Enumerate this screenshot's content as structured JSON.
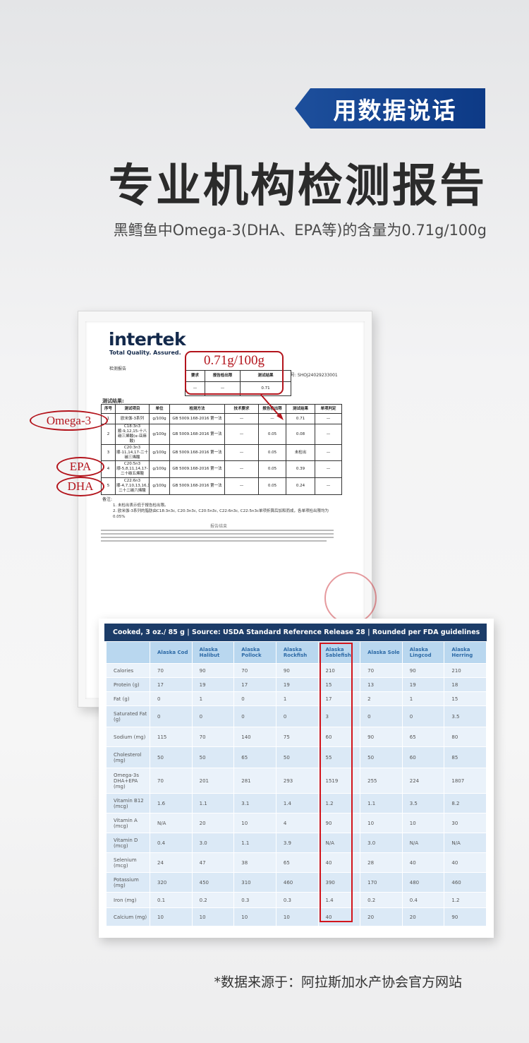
{
  "header": {
    "badge": "用数据说话",
    "title": "专业机构检测报告",
    "subtitle": "黑鳕鱼中Omega-3(DHA、EPA等)的含量为0.71g/100g"
  },
  "report": {
    "logo": "intertek",
    "tagline": "Total Quality. Assured.",
    "label": "检测报告",
    "report_no": "号: SHOJ24029233001",
    "summary": {
      "headers": [
        "要求",
        "报告检出限",
        "测试结果"
      ],
      "row": [
        "—",
        "—",
        "0.71"
      ]
    },
    "results_title": "测试结果:",
    "table": {
      "headers": [
        "序号",
        "测试项目",
        "单位",
        "检测方法",
        "技术要求",
        "报告检出限",
        "测试结果",
        "单项判定"
      ],
      "rows": [
        [
          "1",
          "欧米伽-3系列",
          "g/100g",
          "GB 5009.168-2016 第一法",
          "—",
          "—",
          "0.71",
          "—"
        ],
        [
          "2",
          "C18:3n3 顺-9,12,15-十八碳三烯酸(α-亚麻酸)",
          "g/100g",
          "GB 5009.168-2016 第一法",
          "—",
          "0.05",
          "0.08",
          "—"
        ],
        [
          "3",
          "C20:3n3 顺-11,14,17-二十碳三烯酸",
          "g/100g",
          "GB 5009.168-2016 第一法",
          "—",
          "0.05",
          "未检出",
          "—"
        ],
        [
          "4",
          "C20:5n3 顺-5,8,11,14,17-二十碳五烯酸",
          "g/100g",
          "GB 5009.168-2016 第一法",
          "—",
          "0.05",
          "0.39",
          "—"
        ],
        [
          "5",
          "C22:6n3 顺-4,7,10,13,16,19-二十二碳六烯酸",
          "g/100g",
          "GB 5009.168-2016 第一法",
          "—",
          "0.05",
          "0.24",
          "—"
        ]
      ]
    },
    "notes_title": "备注:",
    "notes": [
      "1. 未检出表示低于报告检出限。",
      "2. 欧米伽-3系列的脂肪由C18:3n3c, C20:3n3c, C20:5n3c, C22:6n3c, C22:5n3c单项折算后加和而成，各单项检出限均为0.05%"
    ],
    "end": "报告结束"
  },
  "annotations": {
    "callout": "0.71g/100g",
    "omega3": "Omega-3",
    "epa": "EPA",
    "dha": "DHA"
  },
  "nutrition": {
    "caption": "Cooked, 3 oz./ 85 g | Source: USDA Standard Reference Release 28 | Rounded per FDA guidelines",
    "columns": [
      "Alaska Cod",
      "Alaska Halibut",
      "Alaska Pollock",
      "Alaska Rockfish",
      "Alaska Sablefish",
      "Alaska Sole",
      "Alaska Lingcod",
      "Alaska Herring"
    ],
    "rows": [
      {
        "label": "Calories",
        "values": [
          "70",
          "90",
          "70",
          "90",
          "210",
          "70",
          "90",
          "210"
        ]
      },
      {
        "label": "Protein (g)",
        "values": [
          "17",
          "19",
          "17",
          "19",
          "15",
          "13",
          "19",
          "18"
        ]
      },
      {
        "label": "Fat (g)",
        "values": [
          "0",
          "1",
          "0",
          "1",
          "17",
          "2",
          "1",
          "15"
        ]
      },
      {
        "label": "Saturated Fat (g)",
        "values": [
          "0",
          "0",
          "0",
          "0",
          "3",
          "0",
          "0",
          "3.5"
        ]
      },
      {
        "label": "Sodium (mg)",
        "values": [
          "115",
          "70",
          "140",
          "75",
          "60",
          "90",
          "65",
          "80"
        ]
      },
      {
        "label": "Cholesterol (mg)",
        "values": [
          "50",
          "50",
          "65",
          "50",
          "55",
          "50",
          "60",
          "85"
        ]
      },
      {
        "label": "Omega-3s DHA+EPA (mg)",
        "values": [
          "70",
          "201",
          "281",
          "293",
          "1519",
          "255",
          "224",
          "1807"
        ]
      },
      {
        "label": "Vitamin B12 (mcg)",
        "values": [
          "1.6",
          "1.1",
          "3.1",
          "1.4",
          "1.2",
          "1.1",
          "3.5",
          "8.2"
        ]
      },
      {
        "label": "Vitamin A (mcg)",
        "values": [
          "N/A",
          "20",
          "10",
          "4",
          "90",
          "10",
          "10",
          "30"
        ]
      },
      {
        "label": "Vitamin D (mcg)",
        "values": [
          "0.4",
          "3.0",
          "1.1",
          "3.9",
          "N/A",
          "3.0",
          "N/A",
          "N/A"
        ]
      },
      {
        "label": "Selenium (mcg)",
        "values": [
          "24",
          "47",
          "38",
          "65",
          "40",
          "28",
          "40",
          "40"
        ]
      },
      {
        "label": "Potassium (mg)",
        "values": [
          "320",
          "450",
          "310",
          "460",
          "390",
          "170",
          "480",
          "460"
        ]
      },
      {
        "label": "Iron (mg)",
        "values": [
          "0.1",
          "0.2",
          "0.3",
          "0.3",
          "1.4",
          "0.2",
          "0.4",
          "1.2"
        ]
      },
      {
        "label": "Calcium (mg)",
        "values": [
          "10",
          "10",
          "10",
          "10",
          "40",
          "20",
          "20",
          "90"
        ]
      }
    ]
  },
  "footer": "*数据来源于：阿拉斯加水产协会官方网站"
}
